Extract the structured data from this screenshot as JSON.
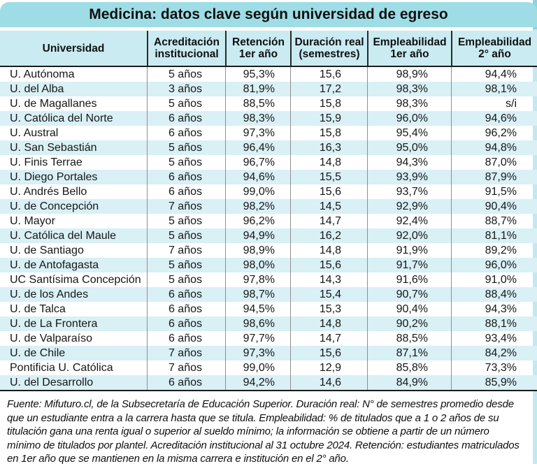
{
  "title": "Medicina: datos clave según universidad de egreso",
  "footnote": "Fuente: Mifuturo.cl, de la Subsecretaría de Educación Superior. Duración real: N° de semestres promedio desde que un estudiante entra a la carrera hasta que se titula. Empleabilidad: % de titulados que a 1 o 2 años de su titulación gana una renta igual o superior al sueldo mínimo; la información se obtiene a partir de un número mínimo de titulados por plantel. Acreditación institucional al 31 octubre 2024. Retención: estudiantes matriculados en 1er año que se mantienen en la misma carrera e institución en el 2° año.",
  "colors": {
    "title_band": "#9fdde6",
    "header_band": "#c9ebf1",
    "row_stripe": "#d9f0f5",
    "header_divider": "#2a2a2a",
    "body_divider": "#8f8f8f",
    "text": "#161616"
  },
  "chart_data": {
    "type": "table",
    "title": "Medicina: datos clave según universidad de egreso",
    "columns": [
      {
        "lines": [
          "Universidad"
        ]
      },
      {
        "lines": [
          "Acreditación",
          "institucional"
        ]
      },
      {
        "lines": [
          "Retención",
          "1er año"
        ]
      },
      {
        "lines": [
          "Duración real",
          "(semestres)"
        ]
      },
      {
        "lines": [
          "Empleabilidad",
          "1er año"
        ]
      },
      {
        "lines": [
          "Empleabilidad",
          "2° año"
        ]
      }
    ],
    "rows": [
      [
        "U. Autónoma",
        "5 años",
        "95,3%",
        "15,6",
        "98,9%",
        "94,4%"
      ],
      [
        "U. del Alba",
        "3 años",
        "81,9%",
        "17,2",
        "98,3%",
        "98,1%"
      ],
      [
        "U. de Magallanes",
        "5 años",
        "88,5%",
        "15,8",
        "98,3%",
        "s/i"
      ],
      [
        "U. Católica del Norte",
        "6 años",
        "98,3%",
        "15,9",
        "96,0%",
        "94,6%"
      ],
      [
        "U. Austral",
        "6 años",
        "97,3%",
        "15,8",
        "95,4%",
        "96,2%"
      ],
      [
        "U. San Sebastián",
        "5 años",
        "96,4%",
        "16,3",
        "95,0%",
        "94,8%"
      ],
      [
        "U. Finis Terrae",
        "5 años",
        "96,7%",
        "14,8",
        "94,3%",
        "87,0%"
      ],
      [
        "U. Diego Portales",
        "6 años",
        "94,6%",
        "15,5",
        "93,9%",
        "87,9%"
      ],
      [
        "U. Andrés Bello",
        "6 años",
        "99,0%",
        "15,6",
        "93,7%",
        "91,5%"
      ],
      [
        "U. de Concepción",
        "7 años",
        "98,2%",
        "14,5",
        "92,9%",
        "90,4%"
      ],
      [
        "U. Mayor",
        "5 años",
        "96,2%",
        "14,7",
        "92,4%",
        "88,7%"
      ],
      [
        "U. Católica del Maule",
        "5 años",
        "94,9%",
        "16,2",
        "92,0%",
        "81,1%"
      ],
      [
        "U. de Santiago",
        "7 años",
        "98,9%",
        "14,8",
        "91,9%",
        "89,2%"
      ],
      [
        "U. de Antofagasta",
        "5 años",
        "98,0%",
        "15,6",
        "91,7%",
        "96,0%"
      ],
      [
        "UC Santísima Concepción",
        "5 años",
        "97,8%",
        "14,3",
        "91,6%",
        "91,0%"
      ],
      [
        "U. de los Andes",
        "6 años",
        "98,7%",
        "15,4",
        "90,7%",
        "88,4%"
      ],
      [
        "U. de Talca",
        "6 años",
        "94,5%",
        "15,3",
        "90,4%",
        "94,3%"
      ],
      [
        "U. de La Frontera",
        "6 años",
        "98,6%",
        "14,8",
        "90,2%",
        "88,1%"
      ],
      [
        "U. de Valparaíso",
        "6 años",
        "97,7%",
        "14,7",
        "88,5%",
        "93,4%"
      ],
      [
        "U. de Chile",
        "7 años",
        "97,3%",
        "15,6",
        "87,1%",
        "84,2%"
      ],
      [
        "Pontificia U. Católica",
        "7 años",
        "99,0%",
        "12,9",
        "85,8%",
        "73,3%"
      ],
      [
        "U. del Desarrollo",
        "6 años",
        "94,2%",
        "14,6",
        "84,9%",
        "85,9%"
      ]
    ]
  }
}
